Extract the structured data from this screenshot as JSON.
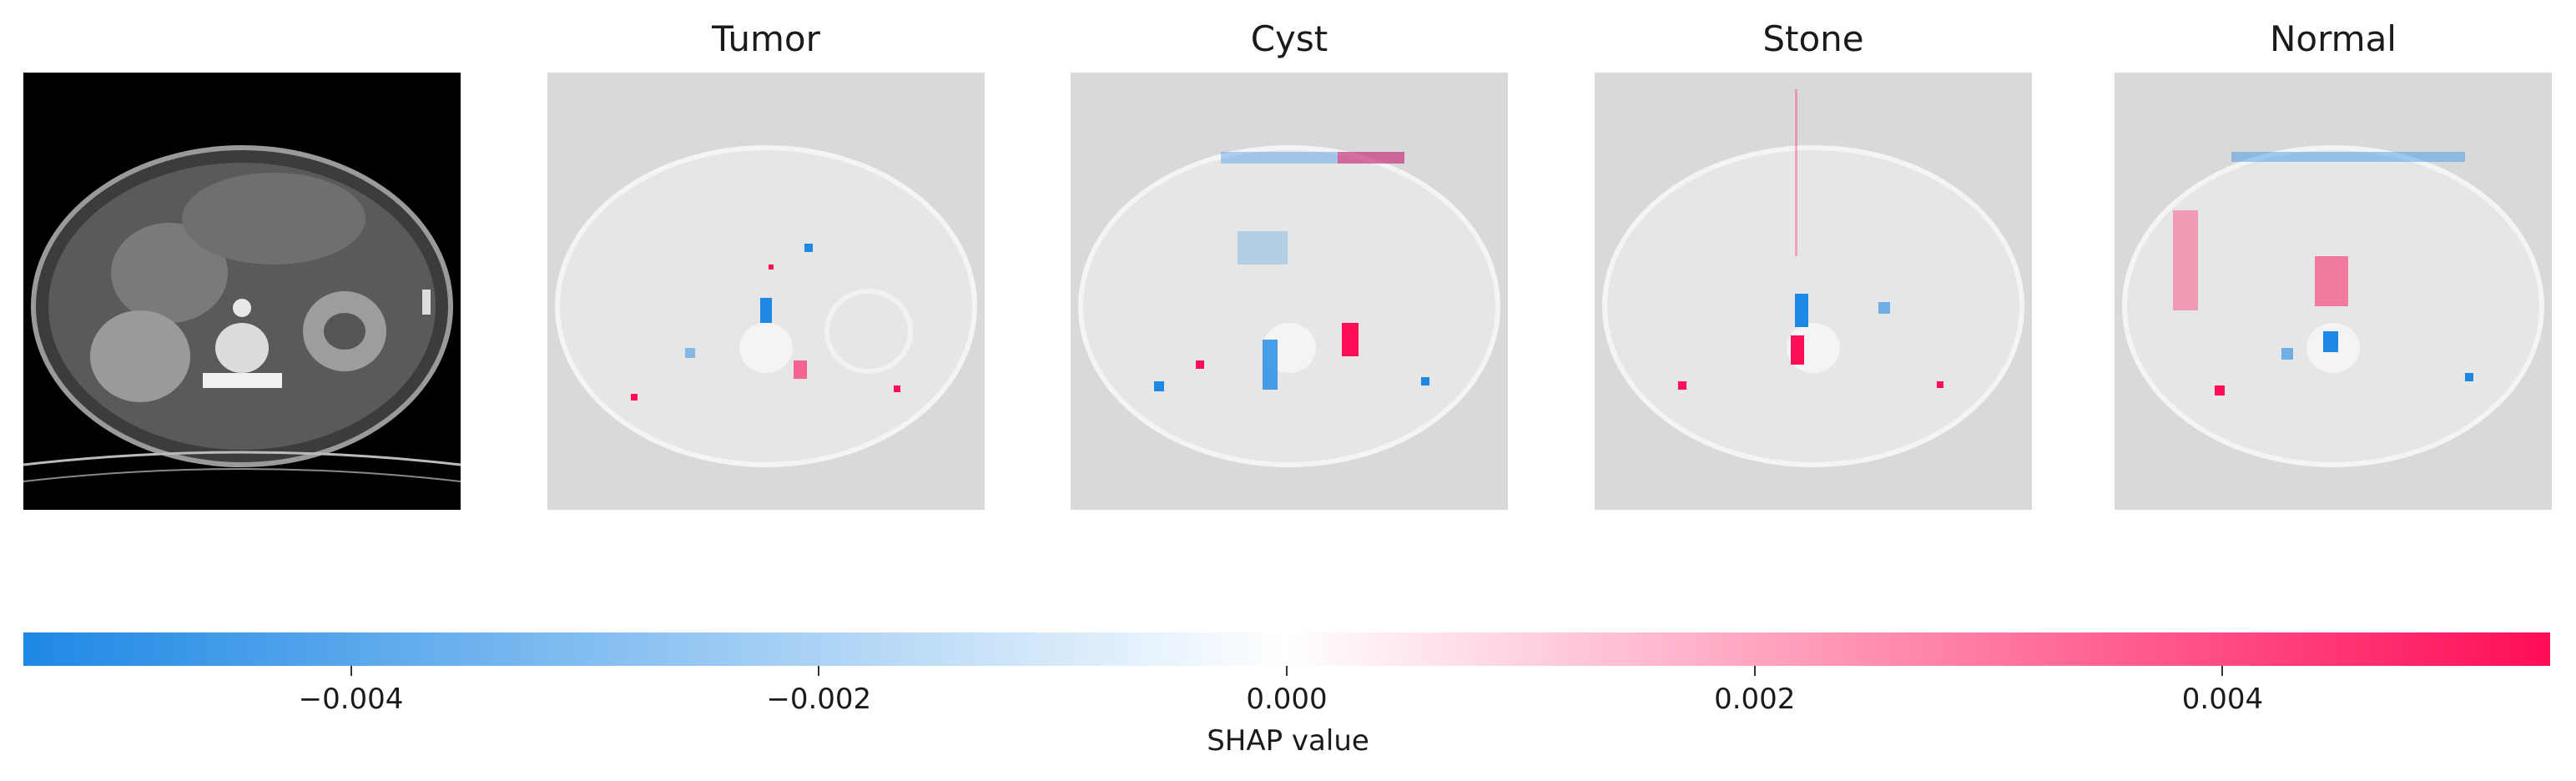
{
  "chart_data": {
    "type": "heatmap",
    "description_kind": "SHAP image explanation",
    "panels": [
      {
        "title": "",
        "kind": "input-image"
      },
      {
        "title": "Tumor",
        "kind": "shap-overlay"
      },
      {
        "title": "Cyst",
        "kind": "shap-overlay"
      },
      {
        "title": "Stone",
        "kind": "shap-overlay"
      },
      {
        "title": "Normal",
        "kind": "shap-overlay"
      }
    ],
    "colorbar": {
      "label": "SHAP value",
      "range": [
        -0.0054,
        0.0054
      ],
      "ticks": [
        -0.004,
        -0.002,
        0.0,
        0.002,
        0.004
      ],
      "tick_labels": [
        "−0.004",
        "−0.002",
        "0.000",
        "0.002",
        "0.004"
      ],
      "color_negative": "#1e88e5",
      "color_zero": "#ffffff",
      "color_positive": "#ff0d57"
    }
  }
}
